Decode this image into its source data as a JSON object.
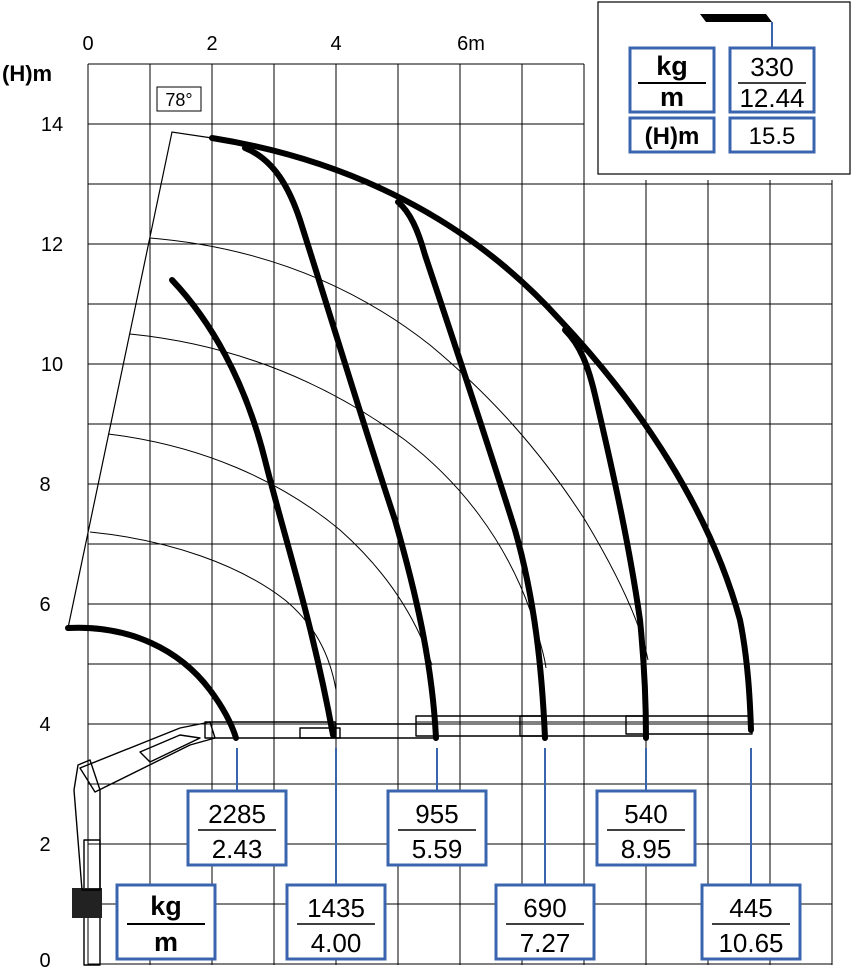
{
  "axes": {
    "x_ticks": [
      "0",
      "2",
      "4",
      "6m"
    ],
    "y_title": "(H)m",
    "y_ticks": [
      "14",
      "12",
      "10",
      "8",
      "6",
      "4",
      "2",
      "0"
    ]
  },
  "angle_label": "78°",
  "legend": {
    "kg_label": "kg",
    "m_label": "m",
    "h_label": "(H)m",
    "load": "330",
    "reach": "12.44",
    "height": "15.5"
  },
  "bottom_legend": {
    "kg_label": "kg",
    "m_label": "m"
  },
  "load_points": [
    {
      "kg": "2285",
      "m": "2.43"
    },
    {
      "kg": "1435",
      "m": "4.00"
    },
    {
      "kg": "955",
      "m": "5.59"
    },
    {
      "kg": "690",
      "m": "7.27"
    },
    {
      "kg": "540",
      "m": "8.95"
    },
    {
      "kg": "445",
      "m": "10.65"
    }
  ],
  "colors": {
    "accent": "#3a64ad",
    "ink": "#000000"
  }
}
